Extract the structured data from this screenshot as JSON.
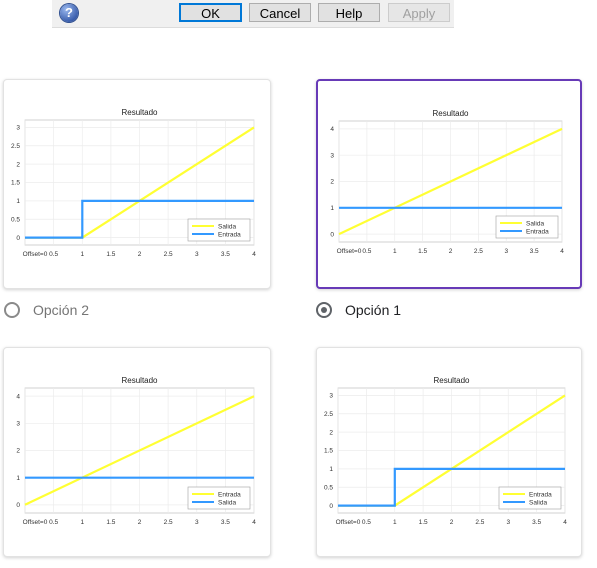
{
  "dialog": {
    "help_glyph": "?",
    "ok_label": "OK",
    "cancel_label": "Cancel",
    "help_label": "Help",
    "apply_label": "Apply"
  },
  "options": [
    {
      "label": "Opción 2",
      "selected": false
    },
    {
      "label": "Opción 1",
      "selected": true
    }
  ],
  "accent_color": "#673ab7",
  "chart_data": [
    {
      "type": "line",
      "title": "Resultado",
      "xlim": [
        0,
        4
      ],
      "ylim": [
        -0.2,
        3.2
      ],
      "xticks": [
        0,
        0.5,
        1,
        1.5,
        2,
        2.5,
        3,
        3.5,
        4
      ],
      "xtick_labels": [
        "Offset=0",
        "0.5",
        "1",
        "1.5",
        "2",
        "2.5",
        "3",
        "3.5",
        "4"
      ],
      "yticks": [
        0,
        0.5,
        1,
        1.5,
        2,
        2.5,
        3
      ],
      "grid": true,
      "legend_position": "bottom-right",
      "series": [
        {
          "name": "Salida",
          "color": "#ffff33",
          "x": [
            0,
            1,
            4
          ],
          "y": [
            0,
            0,
            3
          ]
        },
        {
          "name": "Entrada",
          "color": "#3399ff",
          "x": [
            0,
            1,
            1,
            4
          ],
          "y": [
            0,
            0,
            1,
            1
          ]
        }
      ]
    },
    {
      "type": "line",
      "title": "Resultado",
      "xlim": [
        0,
        4
      ],
      "ylim": [
        -0.3,
        4.3
      ],
      "xticks": [
        0,
        0.5,
        1,
        1.5,
        2,
        2.5,
        3,
        3.5,
        4
      ],
      "xtick_labels": [
        "Offset=0",
        "0.5",
        "1",
        "1.5",
        "2",
        "2.5",
        "3",
        "3.5",
        "4"
      ],
      "yticks": [
        0,
        1,
        2,
        3,
        4
      ],
      "grid": true,
      "legend_position": "bottom-right",
      "series": [
        {
          "name": "Salida",
          "color": "#ffff33",
          "x": [
            0,
            4
          ],
          "y": [
            0,
            4
          ]
        },
        {
          "name": "Entrada",
          "color": "#3399ff",
          "x": [
            0,
            4
          ],
          "y": [
            1,
            1
          ]
        }
      ]
    },
    {
      "type": "line",
      "title": "Resultado",
      "xlim": [
        0,
        4
      ],
      "ylim": [
        -0.3,
        4.3
      ],
      "xticks": [
        0,
        0.5,
        1,
        1.5,
        2,
        2.5,
        3,
        3.5,
        4
      ],
      "xtick_labels": [
        "Offset=0",
        "0.5",
        "1",
        "1.5",
        "2",
        "2.5",
        "3",
        "3.5",
        "4"
      ],
      "yticks": [
        0,
        1,
        2,
        3,
        4
      ],
      "grid": true,
      "legend_position": "bottom-right",
      "series": [
        {
          "name": "Entrada",
          "color": "#ffff33",
          "x": [
            0,
            4
          ],
          "y": [
            0,
            4
          ]
        },
        {
          "name": "Salida",
          "color": "#3399ff",
          "x": [
            0,
            4
          ],
          "y": [
            1,
            1
          ]
        }
      ]
    },
    {
      "type": "line",
      "title": "Resultado",
      "xlim": [
        0,
        4
      ],
      "ylim": [
        -0.2,
        3.2
      ],
      "xticks": [
        0,
        0.5,
        1,
        1.5,
        2,
        2.5,
        3,
        3.5,
        4
      ],
      "xtick_labels": [
        "Offset=0",
        "0.5",
        "1",
        "1.5",
        "2",
        "2.5",
        "3",
        "3.5",
        "4"
      ],
      "yticks": [
        0,
        0.5,
        1,
        1.5,
        2,
        2.5,
        3
      ],
      "grid": true,
      "legend_position": "bottom-right",
      "series": [
        {
          "name": "Entrada",
          "color": "#ffff33",
          "x": [
            0,
            1,
            4
          ],
          "y": [
            0,
            0,
            3
          ]
        },
        {
          "name": "Salida",
          "color": "#3399ff",
          "x": [
            0,
            1,
            1,
            4
          ],
          "y": [
            0,
            0,
            1,
            1
          ]
        }
      ]
    }
  ]
}
